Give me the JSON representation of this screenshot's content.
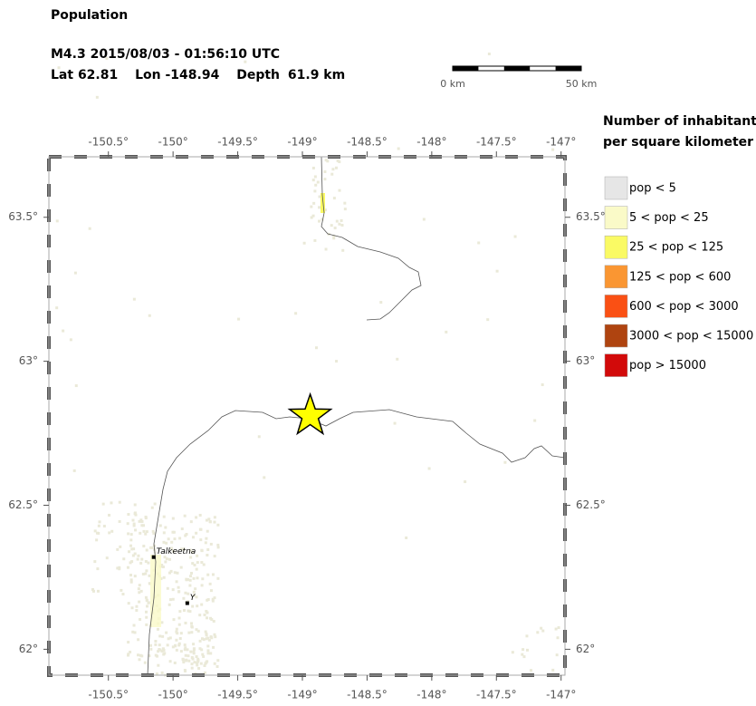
{
  "header": {
    "title": "Population",
    "event": "M4.3  2015/08/03 - 01:56:10 UTC",
    "epicenter": {
      "lat_label": "Lat",
      "lat": 62.81,
      "lon_label": "Lon",
      "lon": -148.94,
      "depth_label": "Depth",
      "depth": "61.9 km"
    }
  },
  "scale_bar": {
    "labels": [
      "0 km",
      "50 km"
    ]
  },
  "map": {
    "lonlim": [
      -150.96,
      -146.97
    ],
    "latlim": [
      61.91,
      63.71
    ],
    "lonticks": [
      {
        "value": -150.5,
        "label": "-150.5°"
      },
      {
        "value": -150,
        "label": "-150°"
      },
      {
        "value": -149.5,
        "label": "-149.5°"
      },
      {
        "value": -149,
        "label": "-149°"
      },
      {
        "value": -148.5,
        "label": "-148.5°"
      },
      {
        "value": -148,
        "label": "-148°"
      },
      {
        "value": -147.5,
        "label": "-147.5°"
      },
      {
        "value": -147,
        "label": "-147°"
      }
    ],
    "latticks": [
      {
        "value": 63.5,
        "label": "63.5°"
      },
      {
        "value": 63,
        "label": "63°"
      },
      {
        "value": 62.5,
        "label": "62.5°"
      },
      {
        "value": 62,
        "label": "62°"
      }
    ],
    "cities": [
      {
        "name": "Talkeetna",
        "lon": -150.15,
        "lat": 62.32
      },
      {
        "name": "Y",
        "lon": -149.89,
        "lat": 62.16
      }
    ]
  },
  "legend": {
    "title": [
      "Number of inhabitants",
      "per square kilometer"
    ],
    "items": [
      {
        "label": "pop < 5",
        "color": "#e6e6e6"
      },
      {
        "label": "5 < pop < 25",
        "color": "#fafac8"
      },
      {
        "label": "25 < pop < 125",
        "color": "#fafa64"
      },
      {
        "label": "125 < pop < 600",
        "color": "#fa9632"
      },
      {
        "label": "600 < pop < 3000",
        "color": "#fa5014"
      },
      {
        "label": "3000 < pop < 15000",
        "color": "#af4410"
      },
      {
        "label": "pop > 15000",
        "color": "#d20a0a"
      }
    ]
  }
}
